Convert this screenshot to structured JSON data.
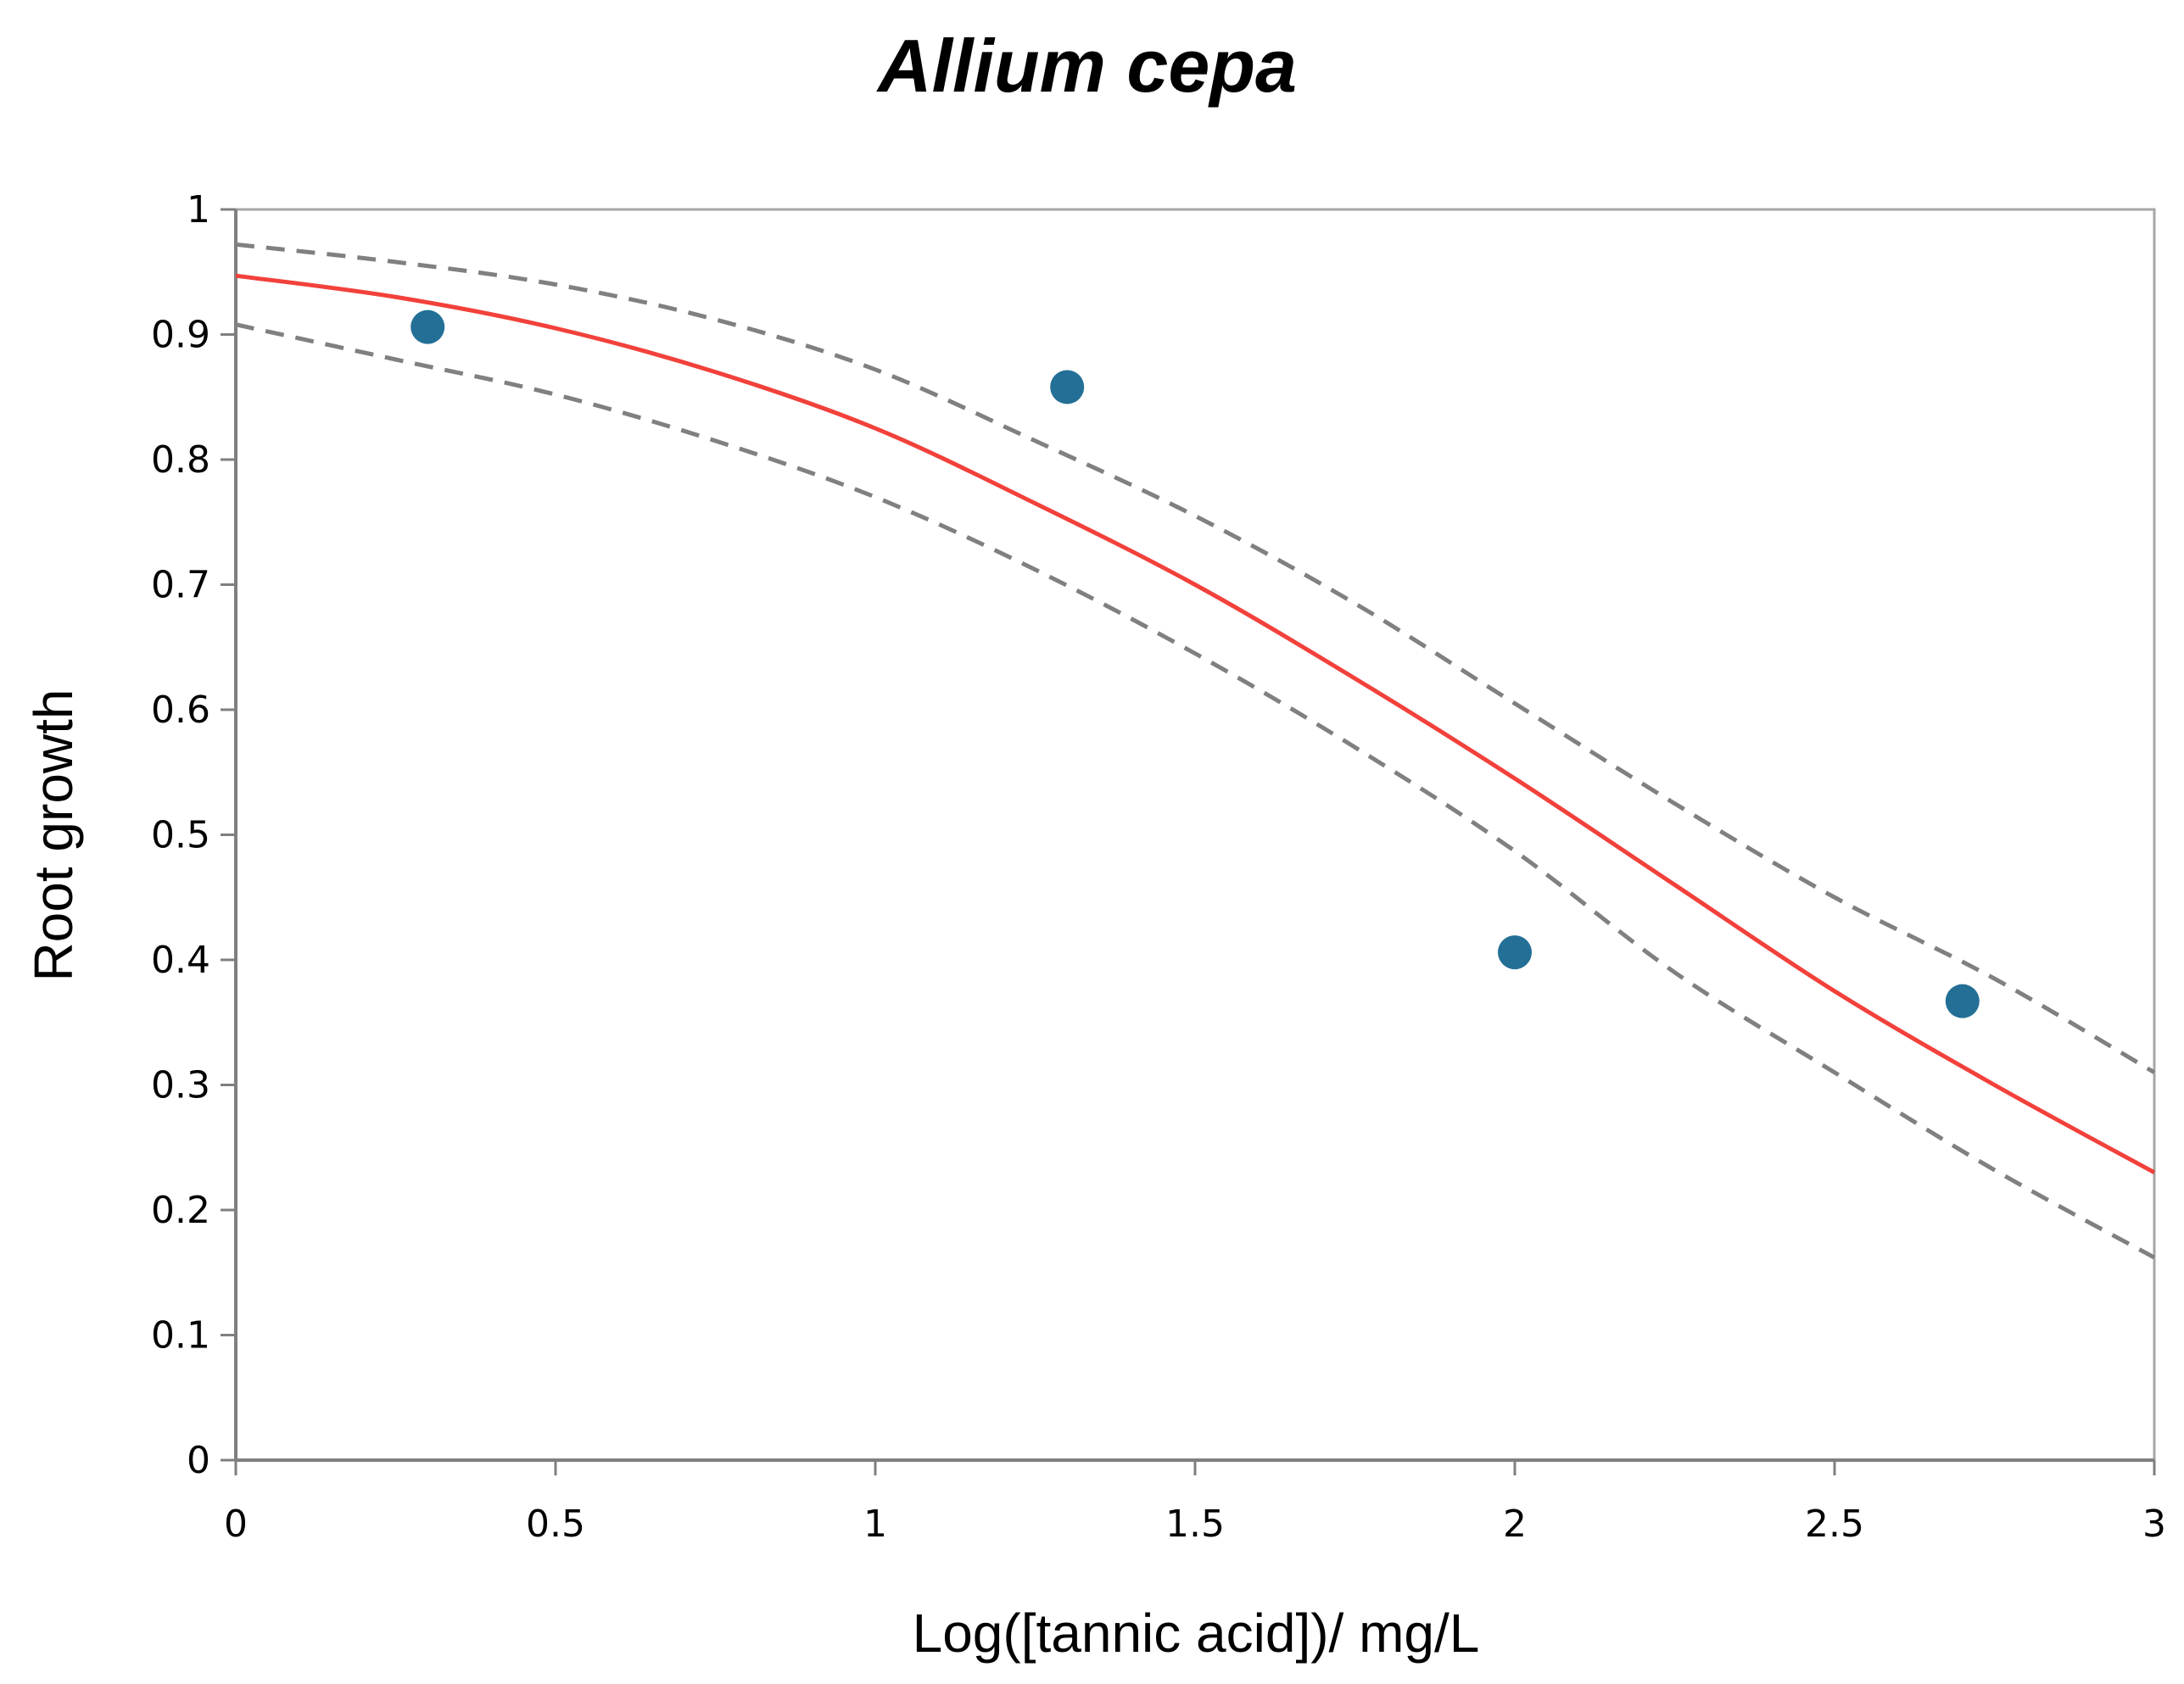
{
  "chart_data": {
    "type": "scatter",
    "title": "Allium cepa",
    "xlabel": "Log([tannic acid])/ mg/L",
    "ylabel": "Root growth",
    "xlim": [
      0,
      3
    ],
    "ylim": [
      0,
      1
    ],
    "x_ticks": [
      "0",
      "0.5",
      "1",
      "1.5",
      "2",
      "2.5",
      "3"
    ],
    "y_ticks": [
      "0",
      "0.1",
      "0.2",
      "0.3",
      "0.4",
      "0.5",
      "0.6",
      "0.7",
      "0.8",
      "0.9",
      "1"
    ],
    "grid": false,
    "legend": "none",
    "series": [
      {
        "type": "scatter",
        "color": "#236f96",
        "x": [
          0.3,
          1.3,
          2.0,
          2.7
        ],
        "y": [
          0.906,
          0.858,
          0.406,
          0.367
        ]
      },
      {
        "type": "line",
        "style": "solid",
        "color": "#f2413b",
        "x": [
          0,
          0.25,
          0.5,
          0.75,
          1.0,
          1.25,
          1.5,
          1.75,
          2.0,
          2.25,
          2.5,
          2.75,
          3.0
        ],
        "y": [
          0.947,
          0.93,
          0.905,
          0.87,
          0.825,
          0.765,
          0.7,
          0.625,
          0.545,
          0.46,
          0.375,
          0.3,
          0.23
        ]
      },
      {
        "type": "line",
        "style": "dashed",
        "color": "#808080",
        "x": [
          0,
          0.25,
          0.5,
          0.75,
          1.0,
          1.25,
          1.5,
          1.75,
          2.0,
          2.25,
          2.5,
          2.75,
          3.0
        ],
        "y": [
          0.972,
          0.958,
          0.94,
          0.912,
          0.872,
          0.815,
          0.755,
          0.685,
          0.605,
          0.525,
          0.45,
          0.385,
          0.31
        ]
      },
      {
        "type": "line",
        "style": "dashed",
        "color": "#808080",
        "x": [
          0,
          0.25,
          0.5,
          0.75,
          1.0,
          1.25,
          1.5,
          1.75,
          2.0,
          2.25,
          2.5,
          2.75,
          3.0
        ],
        "y": [
          0.908,
          0.88,
          0.852,
          0.815,
          0.77,
          0.712,
          0.645,
          0.57,
          0.487,
          0.39,
          0.31,
          0.232,
          0.162
        ]
      }
    ]
  }
}
